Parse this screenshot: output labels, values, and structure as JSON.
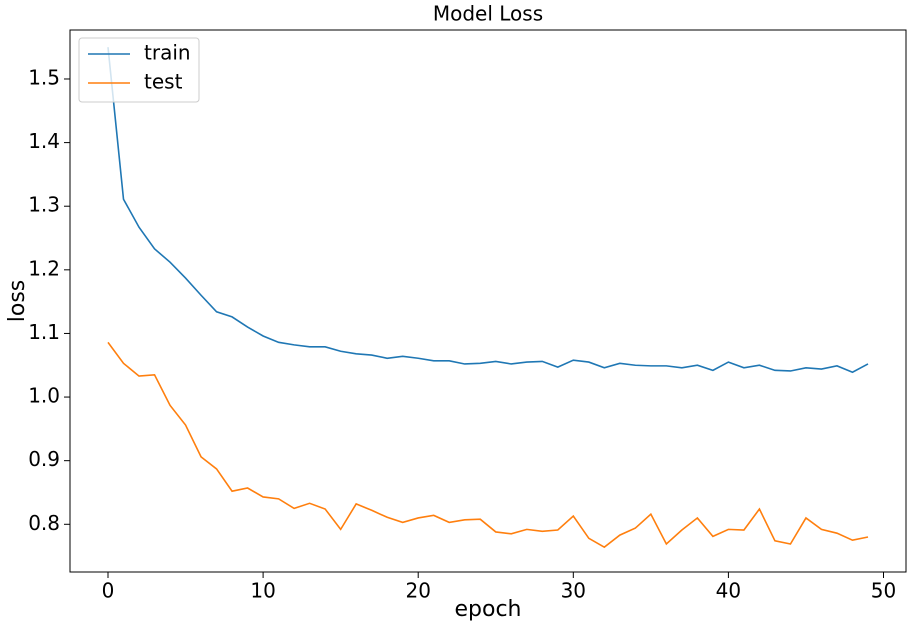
{
  "chart_data": {
    "type": "line",
    "title": "Model Loss",
    "xlabel": "epoch",
    "ylabel": "loss",
    "x": [
      0,
      1,
      2,
      3,
      4,
      5,
      6,
      7,
      8,
      9,
      10,
      11,
      12,
      13,
      14,
      15,
      16,
      17,
      18,
      19,
      20,
      21,
      22,
      23,
      24,
      25,
      26,
      27,
      28,
      29,
      30,
      31,
      32,
      33,
      34,
      35,
      36,
      37,
      38,
      39,
      40,
      41,
      42,
      43,
      44,
      45,
      46,
      47,
      48,
      49
    ],
    "series": [
      {
        "name": "train",
        "color": "#1f77b4",
        "values": [
          1.55,
          1.311,
          1.267,
          1.233,
          1.212,
          1.187,
          1.16,
          1.134,
          1.126,
          1.11,
          1.096,
          1.086,
          1.082,
          1.079,
          1.079,
          1.072,
          1.068,
          1.066,
          1.061,
          1.064,
          1.061,
          1.057,
          1.057,
          1.052,
          1.053,
          1.056,
          1.052,
          1.055,
          1.056,
          1.047,
          1.058,
          1.055,
          1.046,
          1.053,
          1.05,
          1.049,
          1.049,
          1.046,
          1.05,
          1.042,
          1.055,
          1.046,
          1.05,
          1.042,
          1.041,
          1.046,
          1.044,
          1.049,
          1.039,
          1.052
        ]
      },
      {
        "name": "test",
        "color": "#ff7f0e",
        "values": [
          1.086,
          1.053,
          1.033,
          1.035,
          0.987,
          0.956,
          0.906,
          0.887,
          0.852,
          0.857,
          0.843,
          0.84,
          0.825,
          0.833,
          0.824,
          0.792,
          0.832,
          0.822,
          0.811,
          0.803,
          0.81,
          0.814,
          0.803,
          0.807,
          0.808,
          0.788,
          0.785,
          0.792,
          0.789,
          0.791,
          0.813,
          0.778,
          0.764,
          0.783,
          0.794,
          0.816,
          0.769,
          0.791,
          0.81,
          0.781,
          0.792,
          0.791,
          0.824,
          0.774,
          0.769,
          0.81,
          0.792,
          0.786,
          0.775,
          0.78
        ]
      }
    ],
    "xlim": [
      -2.45,
      51.45
    ],
    "xticks": [
      0,
      10,
      20,
      30,
      40,
      50
    ],
    "ylim": [
      0.725,
      1.577
    ],
    "yticks": [
      0.8,
      0.9,
      {
        "value": 1,
        "label": "1.0"
      },
      1.1,
      1.2,
      1.3,
      1.4,
      1.5
    ],
    "legend": "upper-left"
  }
}
